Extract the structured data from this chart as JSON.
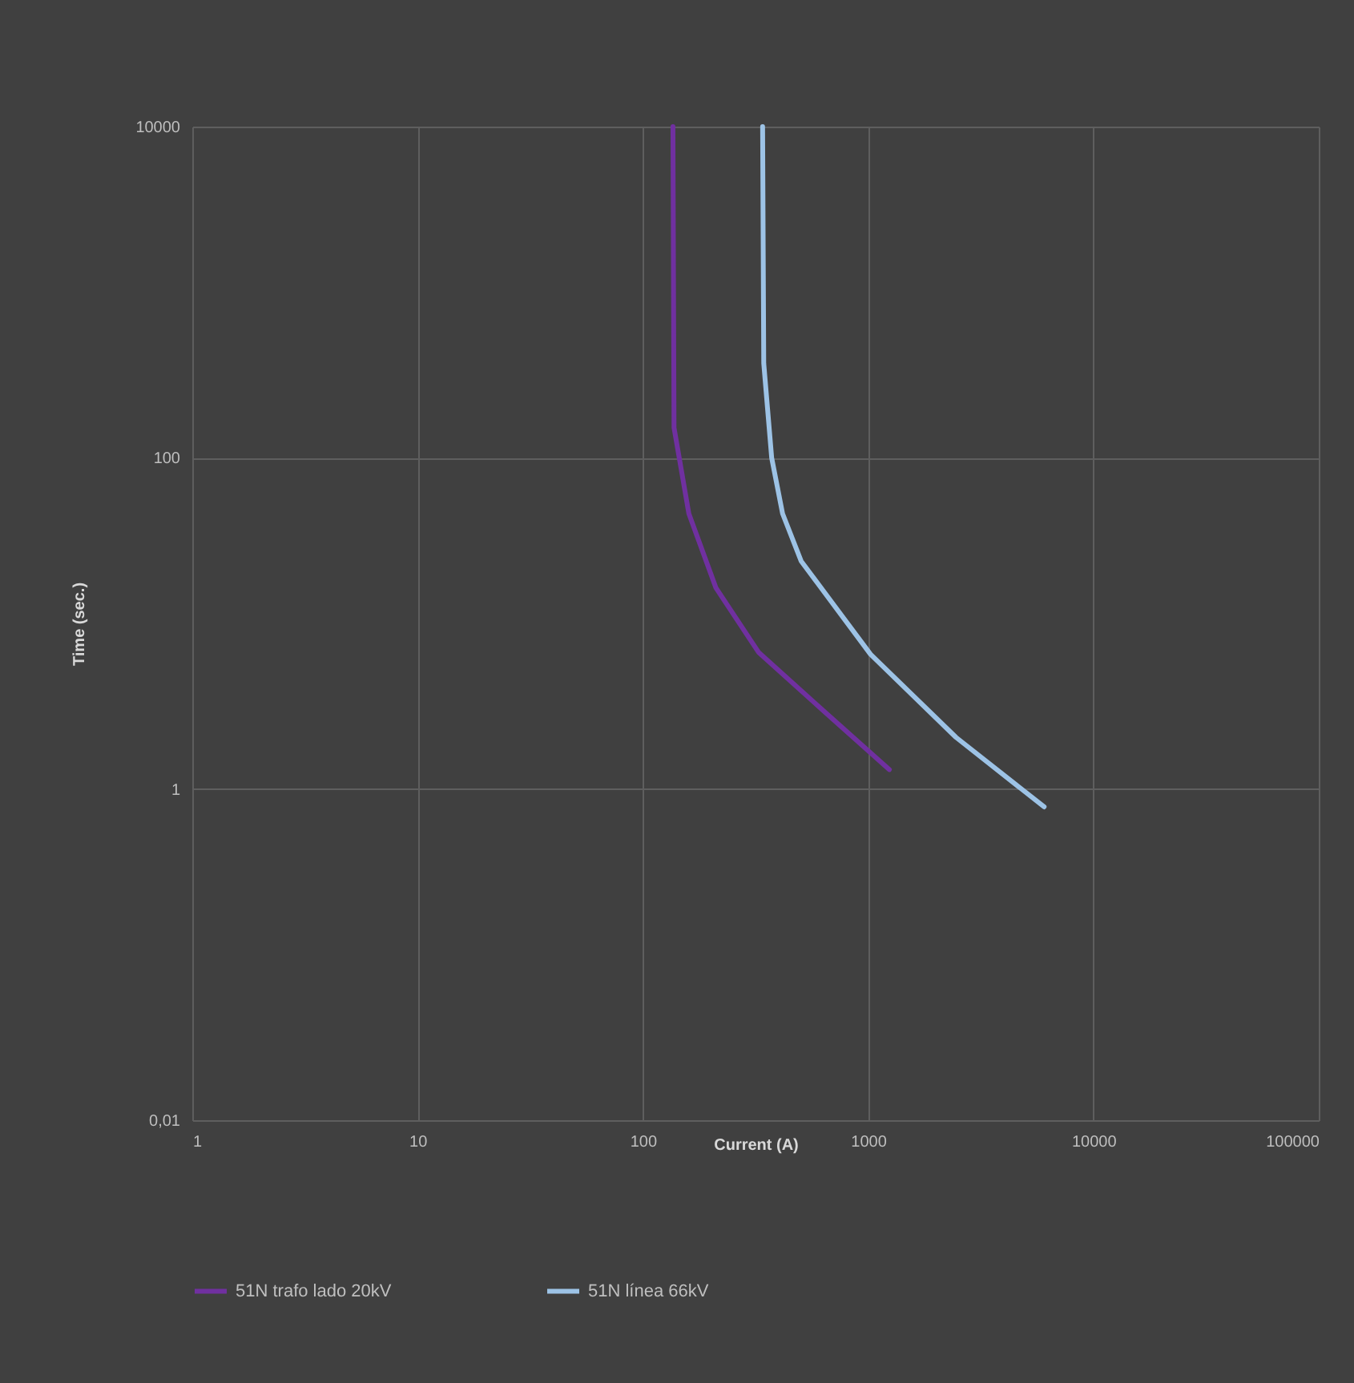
{
  "chart_data": {
    "type": "line",
    "xlabel": "Current (A)",
    "ylabel": "Time (sec.)",
    "log": "xy",
    "grid": true,
    "legend": "bottom",
    "line_style": "solid",
    "marker": "none",
    "xlim": [
      1,
      100000
    ],
    "xticks": [
      1,
      10,
      100,
      1000,
      10000,
      100000
    ],
    "ylim": [
      0.01,
      10000
    ],
    "yticks": [
      {
        "value": 0.01,
        "label": "0,01"
      },
      1,
      100,
      10000
    ],
    "series": [
      {
        "name": "51N trafo lado 20kV",
        "color": "#7030a0",
        "x": [
          136,
          137.5,
          160,
          211,
          326,
          627,
          1242
        ],
        "values": [
          10000,
          152,
          46,
          16.4,
          6.7,
          3.0,
          1.31
        ]
      },
      {
        "name": "51N línea 66kV",
        "color": "#9dc3e6",
        "x": [
          340,
          344,
          373,
          417,
          504,
          1025,
          2455,
          6040
        ],
        "values": [
          10000,
          372,
          100,
          46,
          23.8,
          6.5,
          2.05,
          0.78
        ]
      }
    ]
  }
}
